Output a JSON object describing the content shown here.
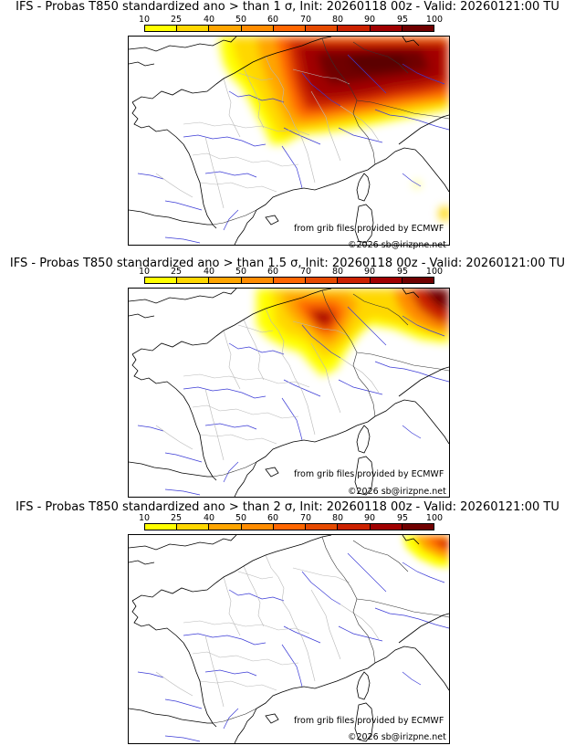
{
  "colorbar": {
    "labels": [
      "10",
      "25",
      "40",
      "50",
      "60",
      "70",
      "80",
      "90",
      "95",
      "100"
    ],
    "colors": [
      "#ffff00",
      "#ffd700",
      "#ffa500",
      "#ff8c00",
      "#ff6600",
      "#e64a00",
      "#cc2200",
      "#a00000",
      "#700000"
    ]
  },
  "panels": [
    {
      "title": "IFS - Probas T850  standardized ano > than 1 σ, Init: 20260118 00z - Valid: 20260121:00 TU",
      "credit": "from grib files provided by ECMWF",
      "copyright": "©2026 sb@irizpne.net"
    },
    {
      "title": "IFS - Probas T850  standardized ano > than 1.5 σ, Init: 20260118 00z - Valid: 20260121:00 TU",
      "credit": "from grib files provided by ECMWF",
      "copyright": "©2026 sb@irizpne.net"
    },
    {
      "title": "IFS - Probas T850  standardized ano > than 2 σ, Init: 20260118 00z - Valid: 20260121:00 TU",
      "credit": "from grib files provided by ECMWF",
      "copyright": "©2026 sb@irizpne.net"
    }
  ]
}
